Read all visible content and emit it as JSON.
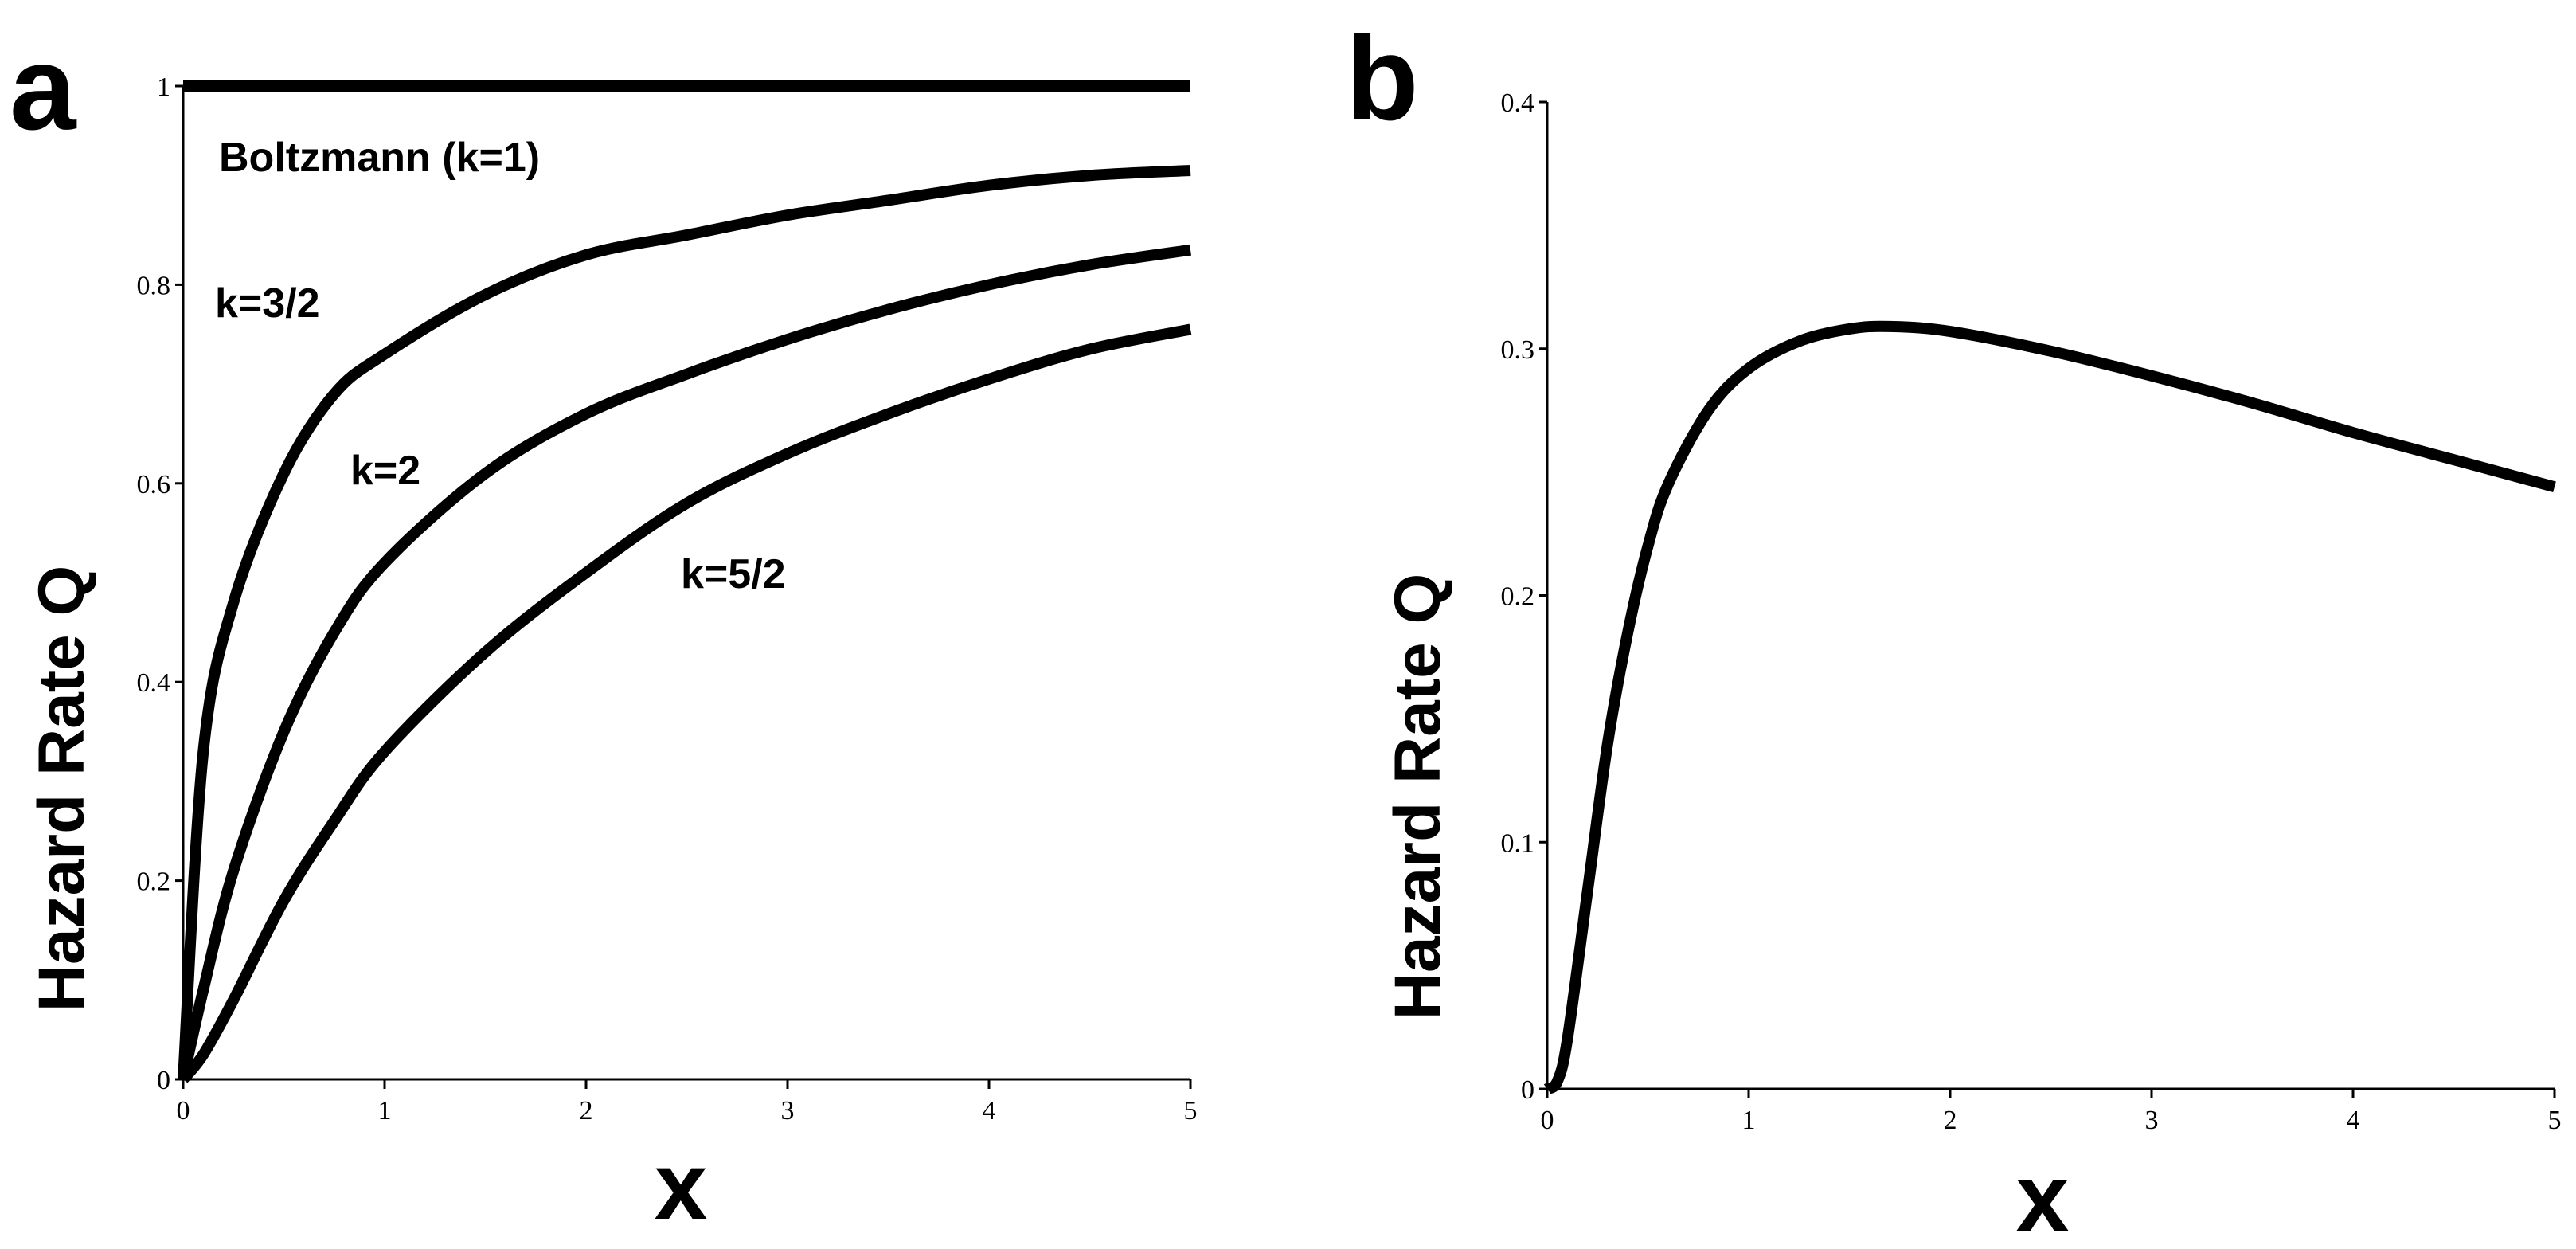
{
  "chart_data": [
    {
      "panel": "a",
      "type": "line",
      "title": "",
      "xlabel": "x",
      "ylabel": "Hazard Rate Q",
      "xlim": [
        0,
        5
      ],
      "ylim": [
        0,
        1
      ],
      "xticks": [
        0,
        1,
        2,
        3,
        4,
        5
      ],
      "yticks": [
        0,
        0.2,
        0.4,
        0.6,
        0.8,
        1
      ],
      "ytick_labels": [
        "0",
        "0.2",
        "0.4",
        "0.6",
        "0.8",
        "1"
      ],
      "grid": false,
      "x": [
        0,
        0.1,
        0.25,
        0.5,
        0.75,
        1,
        1.5,
        2,
        2.5,
        3,
        3.5,
        4,
        4.5,
        5
      ],
      "series": [
        {
          "name": "Boltzmann (k=1)",
          "values": [
            1,
            1,
            1,
            1,
            1,
            1,
            1,
            1,
            1,
            1,
            1,
            1,
            1,
            1
          ]
        },
        {
          "name": "k=3/2",
          "values": [
            0,
            0.33,
            0.48,
            0.61,
            0.69,
            0.73,
            0.79,
            0.83,
            0.85,
            0.87,
            0.885,
            0.9,
            0.91,
            0.915
          ]
        },
        {
          "name": "k=2",
          "values": [
            0,
            0.09,
            0.21,
            0.35,
            0.45,
            0.52,
            0.61,
            0.67,
            0.71,
            0.745,
            0.775,
            0.8,
            0.82,
            0.835
          ]
        },
        {
          "name": "k=5/2",
          "values": [
            0,
            0.025,
            0.08,
            0.18,
            0.26,
            0.33,
            0.43,
            0.51,
            0.58,
            0.63,
            0.67,
            0.705,
            0.735,
            0.755
          ]
        }
      ],
      "annotations": [
        "Boltzmann (k=1)",
        "k=3/2",
        "k=2",
        "k=5/2"
      ]
    },
    {
      "panel": "b",
      "type": "line",
      "title": "",
      "xlabel": "x",
      "ylabel": "Hazard Rate Q",
      "xlim": [
        0,
        5
      ],
      "ylim": [
        0,
        0.4
      ],
      "xticks": [
        0,
        1,
        2,
        3,
        4,
        5
      ],
      "yticks": [
        0,
        0.1,
        0.2,
        0.3,
        0.4
      ],
      "ytick_labels": [
        "0",
        "0.1",
        "0.2",
        "0.3",
        "0.4"
      ],
      "grid": false,
      "x": [
        0,
        0.05,
        0.1,
        0.2,
        0.3,
        0.4,
        0.5,
        0.6,
        0.8,
        1,
        1.25,
        1.5,
        1.7,
        2,
        2.5,
        3,
        3.5,
        4,
        4.5,
        5
      ],
      "series": [
        {
          "name": "Q",
          "values": [
            0,
            0.003,
            0.02,
            0.08,
            0.14,
            0.185,
            0.22,
            0.245,
            0.275,
            0.292,
            0.303,
            0.308,
            0.309,
            0.307,
            0.299,
            0.289,
            0.278,
            0.266,
            0.255,
            0.244
          ]
        }
      ]
    }
  ]
}
